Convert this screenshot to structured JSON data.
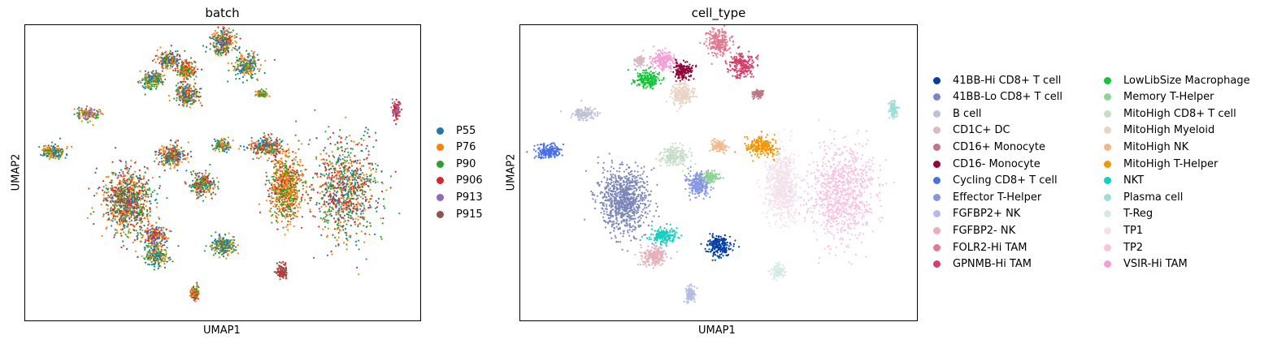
{
  "chart_data": [
    {
      "type": "scatter",
      "title": "batch",
      "xlabel": "UMAP1",
      "ylabel": "UMAP2",
      "legend": {
        "placement": "right",
        "title": ""
      },
      "categories": [
        "P55",
        "P76",
        "P90",
        "P906",
        "P913",
        "P915"
      ],
      "colors": [
        "#1f77b4",
        "#ff7f0e",
        "#2ca02c",
        "#d62728",
        "#9467bd",
        "#8c564b"
      ],
      "clusters": [
        {
          "x": 0.5,
          "y": 0.93,
          "rx": 0.03,
          "ry": 0.045,
          "mix": [
            0,
            1,
            2,
            3
          ]
        },
        {
          "x": 0.36,
          "y": 0.8,
          "rx": 0.03,
          "ry": 0.03,
          "mix": [
            1,
            0,
            2,
            3
          ]
        },
        {
          "x": 0.56,
          "y": 0.76,
          "rx": 0.03,
          "ry": 0.04,
          "mix": [
            1,
            0,
            2
          ]
        },
        {
          "x": 0.41,
          "y": 0.73,
          "rx": 0.025,
          "ry": 0.03,
          "mix": [
            2,
            1,
            3
          ]
        },
        {
          "x": 0.32,
          "y": 0.66,
          "rx": 0.03,
          "ry": 0.03,
          "mix": [
            2,
            0,
            1
          ]
        },
        {
          "x": 0.41,
          "y": 0.56,
          "rx": 0.03,
          "ry": 0.04,
          "mix": [
            2,
            1,
            0,
            3
          ]
        },
        {
          "x": 0.6,
          "y": 0.56,
          "rx": 0.015,
          "ry": 0.012,
          "mix": [
            2,
            1
          ]
        },
        {
          "x": 0.16,
          "y": 0.42,
          "rx": 0.03,
          "ry": 0.02,
          "mix": [
            4,
            1,
            2
          ]
        },
        {
          "x": 0.94,
          "y": 0.45,
          "rx": 0.01,
          "ry": 0.03,
          "mix": [
            4,
            3
          ]
        },
        {
          "x": 0.07,
          "y": 0.15,
          "rx": 0.03,
          "ry": 0.025,
          "mix": [
            0,
            2,
            1
          ]
        },
        {
          "x": 0.37,
          "y": 0.12,
          "rx": 0.035,
          "ry": 0.04,
          "mix": [
            0,
            1,
            3,
            2
          ]
        },
        {
          "x": 0.5,
          "y": 0.19,
          "rx": 0.02,
          "ry": 0.02,
          "mix": [
            2,
            1,
            0
          ]
        },
        {
          "x": 0.61,
          "y": 0.19,
          "rx": 0.04,
          "ry": 0.03,
          "mix": [
            0,
            2,
            1,
            3
          ]
        },
        {
          "x": 0.26,
          "y": -0.2,
          "rx": 0.06,
          "ry": 0.11,
          "mix": [
            0,
            1,
            3,
            2
          ]
        },
        {
          "x": 0.45,
          "y": -0.08,
          "rx": 0.03,
          "ry": 0.04,
          "mix": [
            3,
            1,
            2,
            0
          ]
        },
        {
          "x": 0.66,
          "y": -0.1,
          "rx": 0.04,
          "ry": 0.11,
          "mix": [
            1,
            1,
            2,
            3
          ]
        },
        {
          "x": 0.81,
          "y": -0.13,
          "rx": 0.08,
          "ry": 0.16,
          "mix": [
            3,
            2,
            1,
            0
          ]
        },
        {
          "x": 0.33,
          "y": -0.45,
          "rx": 0.03,
          "ry": 0.03,
          "mix": [
            0,
            1,
            3
          ]
        },
        {
          "x": 0.33,
          "y": -0.59,
          "rx": 0.03,
          "ry": 0.035,
          "mix": [
            1,
            0,
            2
          ]
        },
        {
          "x": 0.5,
          "y": -0.52,
          "rx": 0.03,
          "ry": 0.035,
          "mix": [
            0,
            2,
            1
          ]
        },
        {
          "x": 0.65,
          "y": -0.7,
          "rx": 0.015,
          "ry": 0.025,
          "mix": [
            5,
            3
          ]
        },
        {
          "x": 0.43,
          "y": -0.86,
          "rx": 0.012,
          "ry": 0.025,
          "mix": [
            2,
            1,
            3
          ]
        }
      ]
    },
    {
      "type": "scatter",
      "title": "cell_type",
      "xlabel": "UMAP1",
      "ylabel": "UMAP2",
      "legend": {
        "placement": "right",
        "columns": 2,
        "title": ""
      },
      "categories": [
        "41BB-Hi CD8+ T cell",
        "41BB-Lo CD8+ T cell",
        "B cell",
        "CD1C+ DC",
        "CD16+ Monocyte",
        "CD16- Monocyte",
        "Cycling CD8+ T cell",
        "Effector T-Helper",
        "FGFBP2+ NK",
        "FGFBP2- NK",
        "FOLR2-Hi TAM",
        "GPNMB-Hi TAM",
        "LowLibSize Macrophage",
        "Memory T-Helper",
        "MitoHigh CD8+ T cell",
        "MitoHigh Myeloid",
        "MitoHigh NK",
        "MitoHigh T-Helper",
        "NKT",
        "Plasma cell",
        "T-Reg",
        "TP1",
        "TP2",
        "VSIR-Hi TAM"
      ],
      "colors": [
        "#023fa5",
        "#7d87b9",
        "#bec1d4",
        "#d6bcc0",
        "#bb7784",
        "#8e063b",
        "#4a6fe3",
        "#8595e1",
        "#b5bbe3",
        "#e6afb9",
        "#e07b91",
        "#d33f6a",
        "#11c638",
        "#8dd593",
        "#c6dec7",
        "#ead3c6",
        "#f0b98d",
        "#ef9708",
        "#0fcfc0",
        "#9cded6",
        "#d5eae7",
        "#f3e1eb",
        "#f6c4e1",
        "#f79cd4"
      ],
      "clusters": [
        {
          "x": 0.5,
          "y": 0.93,
          "rx": 0.03,
          "ry": 0.045,
          "mix": [
            10
          ]
        },
        {
          "x": 0.36,
          "y": 0.8,
          "rx": 0.03,
          "ry": 0.03,
          "mix": [
            23
          ]
        },
        {
          "x": 0.56,
          "y": 0.76,
          "rx": 0.03,
          "ry": 0.04,
          "mix": [
            11
          ]
        },
        {
          "x": 0.41,
          "y": 0.73,
          "rx": 0.025,
          "ry": 0.03,
          "mix": [
            5
          ]
        },
        {
          "x": 0.3,
          "y": 0.8,
          "rx": 0.012,
          "ry": 0.015,
          "mix": [
            3
          ]
        },
        {
          "x": 0.32,
          "y": 0.66,
          "rx": 0.03,
          "ry": 0.03,
          "mix": [
            12
          ]
        },
        {
          "x": 0.41,
          "y": 0.56,
          "rx": 0.03,
          "ry": 0.04,
          "mix": [
            15
          ]
        },
        {
          "x": 0.6,
          "y": 0.56,
          "rx": 0.015,
          "ry": 0.012,
          "mix": [
            4
          ]
        },
        {
          "x": 0.16,
          "y": 0.42,
          "rx": 0.03,
          "ry": 0.02,
          "mix": [
            2
          ]
        },
        {
          "x": 0.94,
          "y": 0.45,
          "rx": 0.01,
          "ry": 0.03,
          "mix": [
            19
          ]
        },
        {
          "x": 0.07,
          "y": 0.15,
          "rx": 0.03,
          "ry": 0.025,
          "mix": [
            6
          ]
        },
        {
          "x": 0.39,
          "y": 0.12,
          "rx": 0.035,
          "ry": 0.03,
          "mix": [
            14
          ]
        },
        {
          "x": 0.5,
          "y": 0.19,
          "rx": 0.02,
          "ry": 0.02,
          "mix": [
            16
          ]
        },
        {
          "x": 0.61,
          "y": 0.19,
          "rx": 0.04,
          "ry": 0.03,
          "mix": [
            17
          ]
        },
        {
          "x": 0.26,
          "y": -0.2,
          "rx": 0.06,
          "ry": 0.11,
          "mix": [
            1
          ]
        },
        {
          "x": 0.45,
          "y": -0.08,
          "rx": 0.03,
          "ry": 0.04,
          "mix": [
            7
          ]
        },
        {
          "x": 0.48,
          "y": -0.03,
          "rx": 0.02,
          "ry": 0.02,
          "mix": [
            13
          ]
        },
        {
          "x": 0.66,
          "y": -0.1,
          "rx": 0.04,
          "ry": 0.11,
          "mix": [
            21
          ]
        },
        {
          "x": 0.81,
          "y": -0.13,
          "rx": 0.08,
          "ry": 0.16,
          "mix": [
            22
          ]
        },
        {
          "x": 0.36,
          "y": -0.45,
          "rx": 0.03,
          "ry": 0.025,
          "mix": [
            18
          ]
        },
        {
          "x": 0.34,
          "y": -0.59,
          "rx": 0.03,
          "ry": 0.035,
          "mix": [
            9
          ]
        },
        {
          "x": 0.5,
          "y": -0.52,
          "rx": 0.03,
          "ry": 0.035,
          "mix": [
            0
          ]
        },
        {
          "x": 0.65,
          "y": -0.7,
          "rx": 0.015,
          "ry": 0.025,
          "mix": [
            20
          ]
        },
        {
          "x": 0.43,
          "y": -0.86,
          "rx": 0.012,
          "ry": 0.025,
          "mix": [
            8
          ]
        }
      ]
    }
  ]
}
